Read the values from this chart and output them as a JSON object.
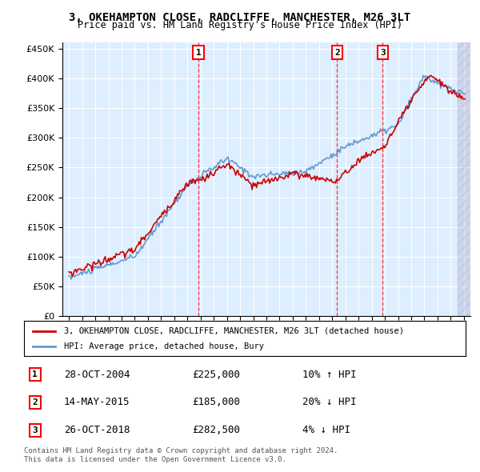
{
  "title": "3, OKEHAMPTON CLOSE, RADCLIFFE, MANCHESTER, M26 3LT",
  "subtitle": "Price paid vs. HM Land Registry's House Price Index (HPI)",
  "legend_property": "3, OKEHAMPTON CLOSE, RADCLIFFE, MANCHESTER, M26 3LT (detached house)",
  "legend_hpi": "HPI: Average price, detached house, Bury",
  "footer1": "Contains HM Land Registry data © Crown copyright and database right 2024.",
  "footer2": "This data is licensed under the Open Government Licence v3.0.",
  "transactions": [
    {
      "num": 1,
      "date": "28-OCT-2004",
      "price": 225000,
      "year": 2004.83,
      "pct": "10%",
      "dir": "↑"
    },
    {
      "num": 2,
      "date": "14-MAY-2015",
      "price": 185000,
      "year": 2015.37,
      "pct": "20%",
      "dir": "↓"
    },
    {
      "num": 3,
      "date": "26-OCT-2018",
      "price": 282500,
      "year": 2018.83,
      "pct": "4%",
      "dir": "↓"
    }
  ],
  "property_color": "#cc0000",
  "hpi_color": "#6699cc",
  "chart_bg": "#ddeeff",
  "ylim": [
    0,
    460000
  ],
  "xlim_start": 1994.5,
  "xlim_end": 2025.5
}
